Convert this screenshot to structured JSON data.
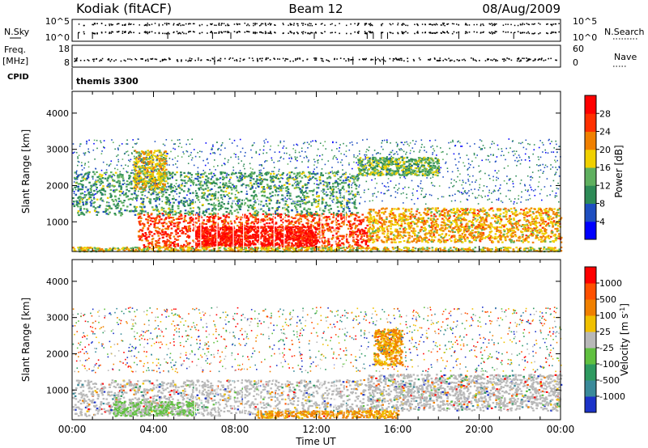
{
  "header": {
    "station": "Kodiak (fitACF)",
    "beam": "Beam 12",
    "date": "08/Aug/2009"
  },
  "strip_labels": {
    "nsky": "N.Sky",
    "freq": "Freq.",
    "freq_unit": "[MHz]",
    "cpid": "CPID",
    "nsearch": "N.Search",
    "nave": "Nave",
    "cpid_value": "themis 3300"
  },
  "strip_ticks": {
    "nsky_left": [
      "10^5",
      "10^0"
    ],
    "freq_left": [
      "18",
      "8"
    ],
    "nsearch_right": [
      "10^5",
      "10^0"
    ],
    "nave_right": [
      "60",
      "0"
    ]
  },
  "colors": {
    "power_scale": [
      "#0000ff",
      "#1f4fc0",
      "#2e8b57",
      "#5fb05f",
      "#f0d000",
      "#f08000",
      "#ff3000",
      "#ff0000"
    ],
    "velocity_scale": [
      "#1c33c8",
      "#3a8a9a",
      "#2e9a60",
      "#60c040",
      "#b8b8b8",
      "#f0c000",
      "#f08000",
      "#ff5000",
      "#ff0000"
    ]
  },
  "chart_data": [
    {
      "type": "heatmap",
      "name": "power",
      "ylabel": "Slant Range [km]",
      "xlabel": "",
      "y_ticks": [
        1000,
        2000,
        3000,
        4000
      ],
      "ylim": [
        180,
        4600
      ],
      "x_ticks": [
        "00:00",
        "04:00",
        "08:00",
        "12:00",
        "16:00",
        "20:00",
        "00:00"
      ],
      "xlim_hours": [
        0,
        24
      ],
      "colorbar": {
        "label": "Power [dB]",
        "ticks": [
          4,
          8,
          12,
          16,
          20,
          24,
          28
        ],
        "range": [
          0,
          32
        ]
      },
      "regions": [
        {
          "t0": 3.2,
          "t1": 14.5,
          "r0": 300,
          "r1": 1250,
          "level": 26
        },
        {
          "t0": 6.0,
          "t1": 12.0,
          "r0": 350,
          "r1": 900,
          "level": 30
        },
        {
          "t0": 0.0,
          "t1": 24.0,
          "r0": 200,
          "r1": 320,
          "level": 18
        },
        {
          "t0": 14.5,
          "t1": 24.0,
          "r0": 450,
          "r1": 1400,
          "level": 20
        },
        {
          "t0": 0.0,
          "t1": 14.0,
          "r0": 1200,
          "r1": 2400,
          "level": 12
        },
        {
          "t0": 3.0,
          "t1": 4.6,
          "r0": 1900,
          "r1": 3000,
          "level": 18
        },
        {
          "t0": 14.0,
          "t1": 18.0,
          "r0": 2300,
          "r1": 2800,
          "level": 14
        },
        {
          "t0": 0.0,
          "t1": 24.0,
          "r0": 1500,
          "r1": 3300,
          "level": 8
        }
      ]
    },
    {
      "type": "heatmap",
      "name": "velocity",
      "ylabel": "Slant Range [km]",
      "xlabel": "Time UT",
      "y_ticks": [
        1000,
        2000,
        3000,
        4000
      ],
      "ylim": [
        180,
        4600
      ],
      "x_ticks": [
        "00:00",
        "04:00",
        "08:00",
        "12:00",
        "16:00",
        "20:00",
        "00:00"
      ],
      "xlim_hours": [
        0,
        24
      ],
      "colorbar": {
        "label": "Velocity [m s^-1]",
        "ticks": [
          1000,
          500,
          100,
          25,
          -25,
          -100,
          -500,
          -1000
        ]
      },
      "regions": [
        {
          "t0": 0.0,
          "t1": 14.5,
          "r0": 300,
          "r1": 1300,
          "cls": "grey"
        },
        {
          "t0": 14.5,
          "t1": 24.0,
          "r0": 450,
          "r1": 1450,
          "cls": "grey"
        },
        {
          "t0": 2.0,
          "t1": 6.0,
          "r0": 300,
          "r1": 700,
          "cls": "green"
        },
        {
          "t0": 9.0,
          "t1": 16.0,
          "r0": 250,
          "r1": 450,
          "cls": "orange"
        },
        {
          "t0": 14.8,
          "t1": 16.2,
          "r0": 1700,
          "r1": 2700,
          "cls": "orange"
        },
        {
          "t0": 0.0,
          "t1": 24.0,
          "r0": 1500,
          "r1": 3300,
          "cls": "mixed"
        }
      ]
    }
  ]
}
